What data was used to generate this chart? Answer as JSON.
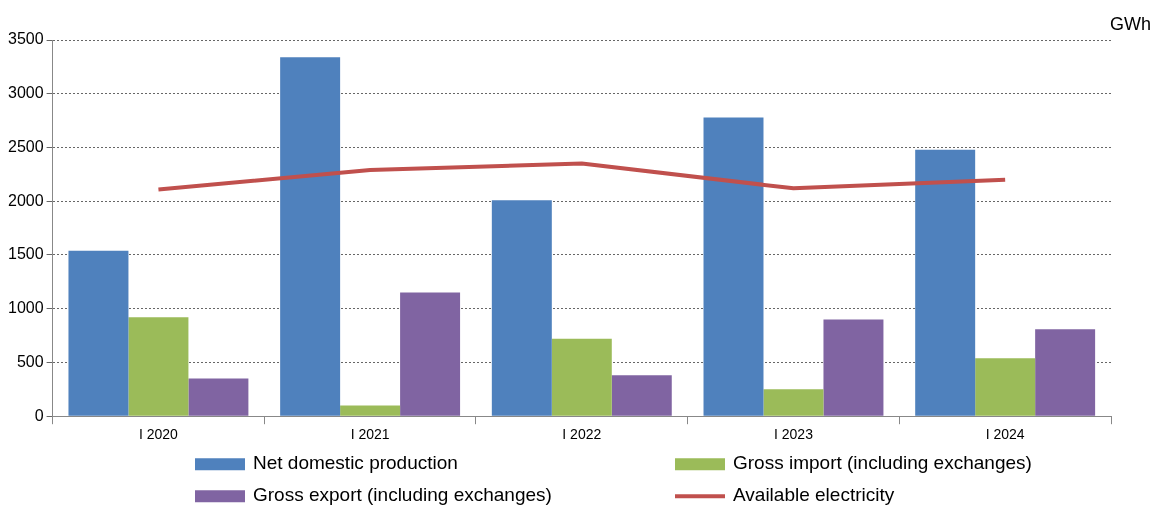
{
  "chart_data": {
    "type": "bar",
    "ylabel": "GWh",
    "categories": [
      "I 2020",
      "I 2021",
      "I 2022",
      "I 2023",
      "I 2024"
    ],
    "series": [
      {
        "name": "Net domestic production",
        "color": "#4f81bd",
        "values": [
          1540,
          3340,
          2010,
          2780,
          2480
        ]
      },
      {
        "name": "Gross import (including exchanges)",
        "color": "#9bbb59",
        "values": [
          920,
          100,
          720,
          250,
          540
        ]
      },
      {
        "name": "Gross export (including exchanges)",
        "color": "#8064a2",
        "values": [
          350,
          1150,
          380,
          900,
          810
        ]
      },
      {
        "name": "Available electricity",
        "type": "line",
        "color": "#c0504d",
        "values": [
          2110,
          2290,
          2350,
          2120,
          2200
        ]
      }
    ],
    "ylim": [
      0,
      3500
    ],
    "yticks": [
      0,
      500,
      1000,
      1500,
      2000,
      2500,
      3000,
      3500
    ],
    "grid": "y",
    "legend": "bottom",
    "marker": "none",
    "line_style": "solid"
  }
}
